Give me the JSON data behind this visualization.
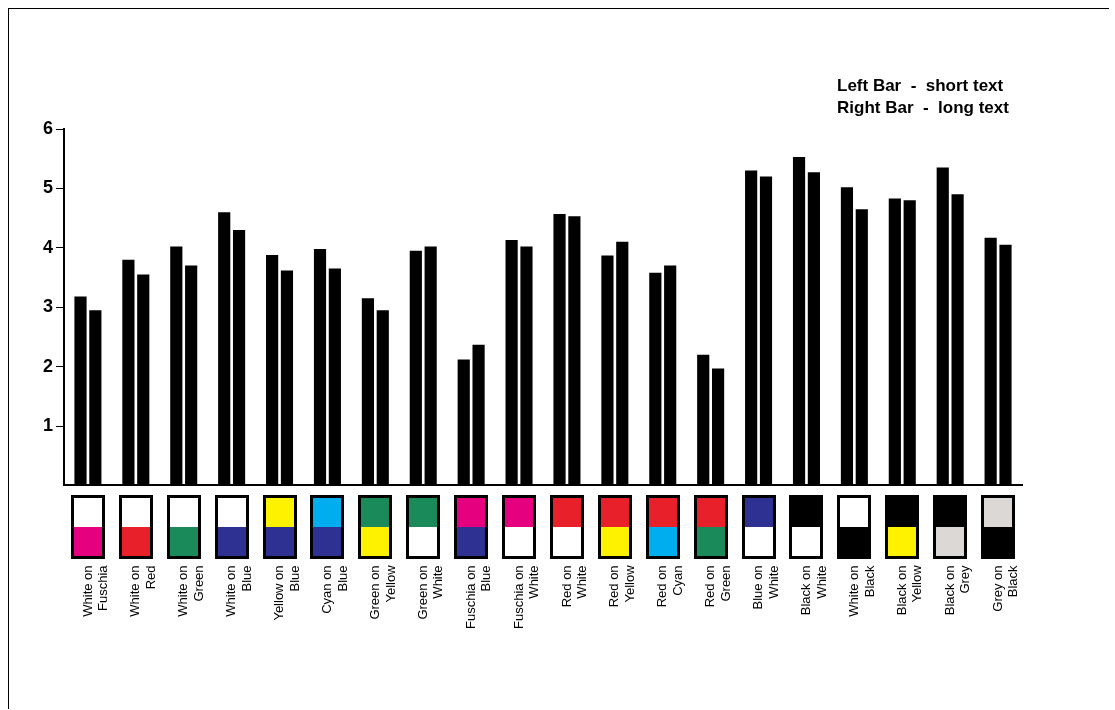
{
  "chart_data": {
    "type": "bar",
    "categories": [
      "White on Fuschia",
      "White on Red",
      "White on Green",
      "White on Blue",
      "Yellow on Blue",
      "Cyan on Blue",
      "Green on Yellow",
      "Green on White",
      "Fuschia on Blue",
      "Fuschia on White",
      "Red on White",
      "Red on Yellow",
      "Red on Cyan",
      "Red on Green",
      "Blue on White",
      "Black on White",
      "White on Black",
      "Black on Yellow",
      "Black on Grey",
      "Grey on Black"
    ],
    "series": [
      {
        "color": "#000000",
        "values": [
          3.18,
          3.8,
          4.02,
          4.6,
          3.88,
          3.98,
          3.15,
          3.95,
          2.12,
          4.13,
          4.57,
          3.87,
          3.58,
          2.2,
          5.3,
          5.53,
          5.02,
          4.83,
          5.35,
          4.17
        ]
      },
      {
        "color": "#000000",
        "values": [
          2.95,
          3.55,
          3.7,
          4.3,
          3.62,
          3.65,
          2.95,
          4.02,
          2.37,
          4.02,
          4.53,
          4.1,
          3.7,
          1.97,
          5.2,
          5.27,
          4.65,
          4.8,
          4.9,
          4.05
        ]
      }
    ],
    "ylim": [
      0,
      6
    ],
    "yticks": [
      1,
      2,
      3,
      4,
      5,
      6
    ],
    "grid": false,
    "legend": false,
    "annotations": [
      "Left Bar  -  short text",
      "Right Bar  -  long text"
    ]
  }
}
